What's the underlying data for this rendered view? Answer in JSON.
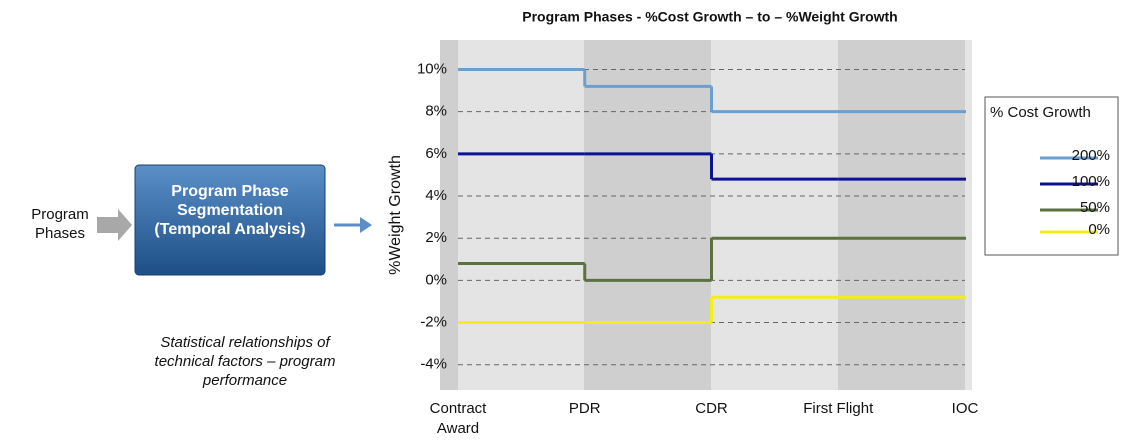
{
  "diagram": {
    "input_label": "Program Phases",
    "box_label": "Program Phase Segmentation (Temporal Analysis)",
    "caption": "Statistical relationships of technical factors – program performance"
  },
  "chart_data": {
    "type": "line",
    "step": true,
    "title": "Program Phases - %Cost Growth – to – %Weight Growth",
    "y_label": "%Weight Growth",
    "categories": [
      "Contract Award",
      "PDR",
      "CDR",
      "First Flight",
      "IOC"
    ],
    "ylim": [
      -5.2,
      11.4
    ],
    "yticks": [
      {
        "value": -4,
        "label": "-4%"
      },
      {
        "value": -2,
        "label": "-2%"
      },
      {
        "value": 0,
        "label": "0%"
      },
      {
        "value": 2,
        "label": "2%"
      },
      {
        "value": 4,
        "label": "4%"
      },
      {
        "value": 6,
        "label": "6%"
      },
      {
        "value": 8,
        "label": "8%"
      },
      {
        "value": 10,
        "label": "10%"
      }
    ],
    "grid": true,
    "legend": {
      "title": "% Cost Growth",
      "position": "right"
    },
    "series": [
      {
        "name": "200%",
        "color": "#6a9fd2",
        "values": [
          10,
          9.2,
          8,
          8,
          8
        ]
      },
      {
        "name": "100%",
        "color": "#0c1490",
        "values": [
          6,
          6,
          4.8,
          4.8,
          4.8
        ]
      },
      {
        "name": "50%",
        "color": "#5d7040",
        "values": [
          0.8,
          0,
          2,
          2,
          2
        ]
      },
      {
        "name": "0%",
        "color": "#f2ee1a",
        "values": [
          -2,
          -2,
          -0.8,
          -0.8,
          -0.8
        ]
      }
    ]
  }
}
